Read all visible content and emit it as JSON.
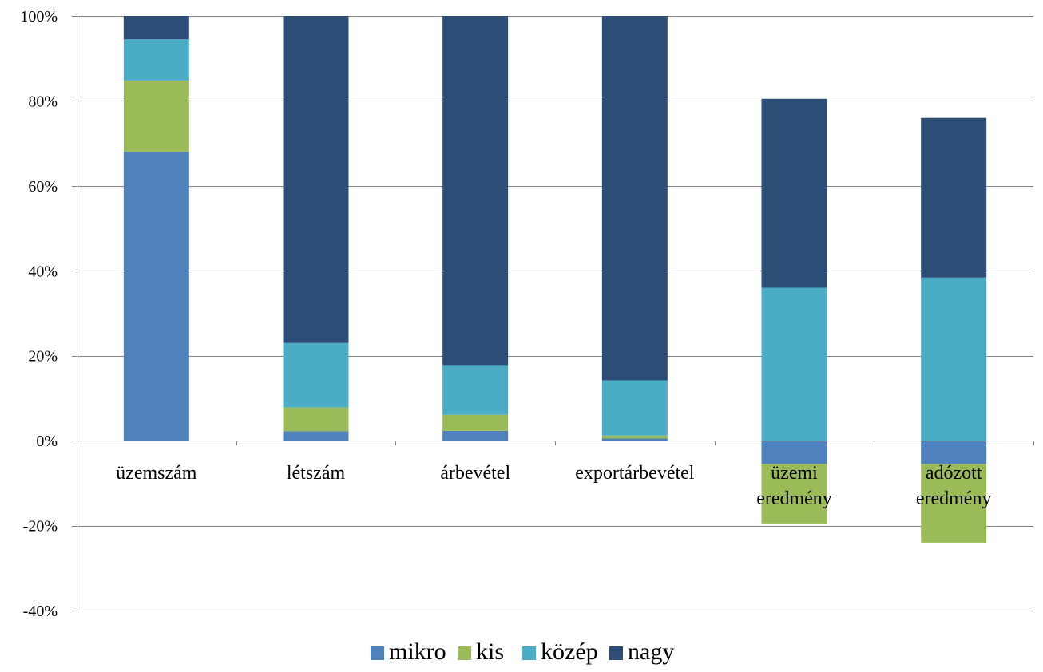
{
  "chart_data": {
    "type": "bar",
    "stacked": true,
    "categories": [
      [
        "üzemszám"
      ],
      [
        "létszám"
      ],
      [
        "árbevétel"
      ],
      [
        "exportárbevétel"
      ],
      [
        "üzemi",
        "eredmény"
      ],
      [
        "adózott",
        "eredmény"
      ]
    ],
    "series": [
      {
        "name": "mikro",
        "color": "#4F81BD",
        "values": [
          68,
          2.2,
          2.3,
          0.5,
          -5.5,
          -5.5
        ]
      },
      {
        "name": "kis",
        "color": "#9BBB59",
        "values": [
          16.8,
          5.6,
          3.8,
          0.7,
          -14,
          -18.5
        ]
      },
      {
        "name": "közép",
        "color": "#4BACC6",
        "values": [
          9.7,
          15.2,
          11.7,
          13.0,
          36,
          38.4
        ]
      },
      {
        "name": "nagy",
        "color": "#2C4D75",
        "values": [
          5.5,
          77,
          82.2,
          85.8,
          44.5,
          37.6
        ]
      }
    ],
    "ylim": [
      -40,
      100
    ],
    "yticks": [
      -40,
      -20,
      0,
      20,
      40,
      60,
      80,
      100
    ],
    "ytick_labels": [
      "-40%",
      "-20%",
      "0%",
      "20%",
      "40%",
      "60%",
      "80%",
      "100%"
    ],
    "grid": true,
    "legend_position": "bottom",
    "title": "",
    "xlabel": "",
    "ylabel": ""
  }
}
